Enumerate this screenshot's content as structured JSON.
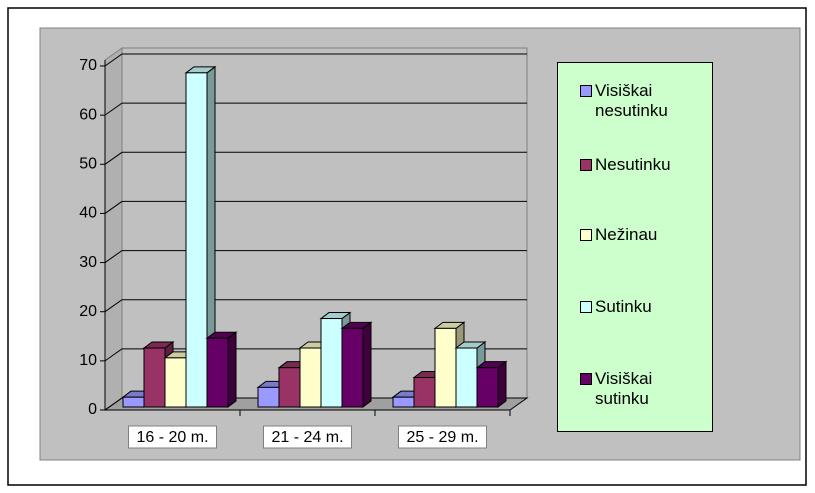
{
  "chart_data": {
    "type": "bar3d",
    "categories": [
      "16 - 20 m.",
      "21 - 24 m.",
      "25 - 29 m."
    ],
    "series": [
      {
        "name": "Visiškai nesutinku",
        "color": "#9999ff",
        "values": [
          2,
          4,
          2
        ]
      },
      {
        "name": "Nesutinku",
        "color": "#993366",
        "values": [
          12,
          8,
          6
        ]
      },
      {
        "name": "Nežinau",
        "color": "#ffffcc",
        "values": [
          10,
          12,
          16
        ]
      },
      {
        "name": "Sutinku",
        "color": "#ccffff",
        "values": [
          68,
          18,
          12
        ]
      },
      {
        "name": "Visiškai sutinku",
        "color": "#660066",
        "values": [
          14,
          16,
          8
        ]
      }
    ],
    "ylim": [
      0,
      70
    ],
    "yticks": [
      0,
      10,
      20,
      30,
      40,
      50,
      60,
      70
    ],
    "grid": true,
    "legend": "right"
  }
}
